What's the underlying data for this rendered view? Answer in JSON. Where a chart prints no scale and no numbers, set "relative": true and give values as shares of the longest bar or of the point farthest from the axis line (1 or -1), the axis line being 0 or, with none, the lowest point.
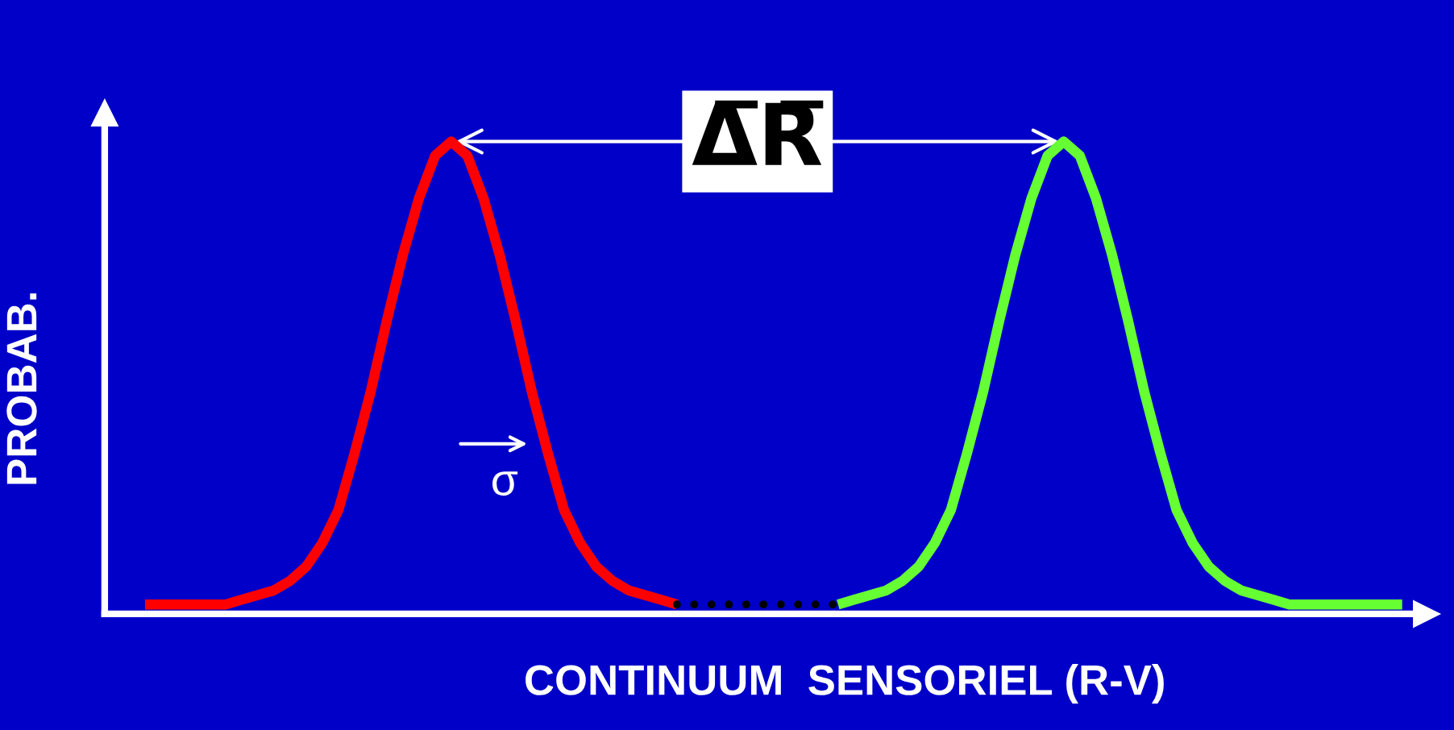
{
  "chart_data": {
    "type": "line",
    "relative": true,
    "xlabel": "CONTINUUM  SENSORIEL (R-V)",
    "ylabel": "PROBAB.",
    "tick_labels": false,
    "categories": [
      null,
      null,
      null,
      null,
      null,
      null,
      null,
      null,
      null,
      null,
      null,
      null,
      null,
      null,
      null,
      null,
      null,
      null,
      null,
      null,
      null,
      null,
      null,
      null,
      null,
      null,
      null,
      null,
      null,
      null,
      null,
      null,
      null,
      null,
      null,
      null,
      null,
      null,
      null,
      null,
      null,
      null,
      null,
      null,
      null,
      null,
      null,
      null,
      null,
      null,
      null,
      null,
      null,
      null,
      null,
      null,
      null,
      null,
      null,
      null,
      null,
      null,
      null,
      null,
      null,
      null,
      null,
      null,
      null,
      null,
      null,
      null,
      null,
      null,
      null,
      null,
      null,
      null,
      null
    ],
    "series": [
      {
        "color": "#ff0000",
        "line_style": "solid",
        "values": [
          0.02,
          0.02,
          0.02,
          0.02,
          0.02,
          0.02,
          0.03,
          0.04,
          0.05,
          0.07,
          0.1,
          0.15,
          0.22,
          0.34,
          0.47,
          0.62,
          0.76,
          0.88,
          0.97,
          1.0,
          0.97,
          0.88,
          0.76,
          0.62,
          0.47,
          0.34,
          0.22,
          0.15,
          0.1,
          0.07,
          0.05,
          0.04,
          0.03,
          0.02,
          null,
          null,
          null,
          null,
          null,
          null,
          null,
          null,
          null,
          null,
          null,
          null,
          null,
          null,
          null,
          null,
          null,
          null,
          null,
          null,
          null,
          null,
          null,
          null,
          null,
          null,
          null,
          null,
          null,
          null,
          null,
          null,
          null,
          null,
          null,
          null,
          null,
          null,
          null,
          null,
          null,
          null,
          null,
          null,
          null
        ]
      },
      {
        "color": "#000000",
        "line_style": "dotted",
        "values": [
          null,
          null,
          null,
          null,
          null,
          null,
          null,
          null,
          null,
          null,
          null,
          null,
          null,
          null,
          null,
          null,
          null,
          null,
          null,
          null,
          null,
          null,
          null,
          null,
          null,
          null,
          null,
          null,
          null,
          null,
          null,
          null,
          null,
          0.02,
          0.02,
          0.02,
          0.02,
          0.02,
          0.02,
          0.02,
          0.02,
          0.02,
          0.02,
          0.02,
          null,
          null,
          null,
          null,
          null,
          null,
          null,
          null,
          null,
          null,
          null,
          null,
          null,
          null,
          null,
          null,
          null,
          null,
          null,
          null,
          null,
          null,
          null,
          null,
          null,
          null,
          null,
          null,
          null,
          null,
          null,
          null,
          null,
          null,
          null
        ]
      },
      {
        "color": "#66ff33",
        "line_style": "solid",
        "values": [
          null,
          null,
          null,
          null,
          null,
          null,
          null,
          null,
          null,
          null,
          null,
          null,
          null,
          null,
          null,
          null,
          null,
          null,
          null,
          null,
          null,
          null,
          null,
          null,
          null,
          null,
          null,
          null,
          null,
          null,
          null,
          null,
          null,
          null,
          null,
          null,
          null,
          null,
          null,
          null,
          null,
          null,
          null,
          0.02,
          0.03,
          0.04,
          0.05,
          0.07,
          0.1,
          0.15,
          0.22,
          0.34,
          0.47,
          0.62,
          0.76,
          0.88,
          0.97,
          1.0,
          0.97,
          0.88,
          0.76,
          0.62,
          0.47,
          0.34,
          0.22,
          0.15,
          0.1,
          0.07,
          0.05,
          0.04,
          0.03,
          0.02,
          0.02,
          0.02,
          0.02,
          0.02,
          0.02,
          0.02,
          0.02
        ]
      }
    ],
    "annotations": [
      "Δ̅R̅",
      "σ"
    ]
  }
}
